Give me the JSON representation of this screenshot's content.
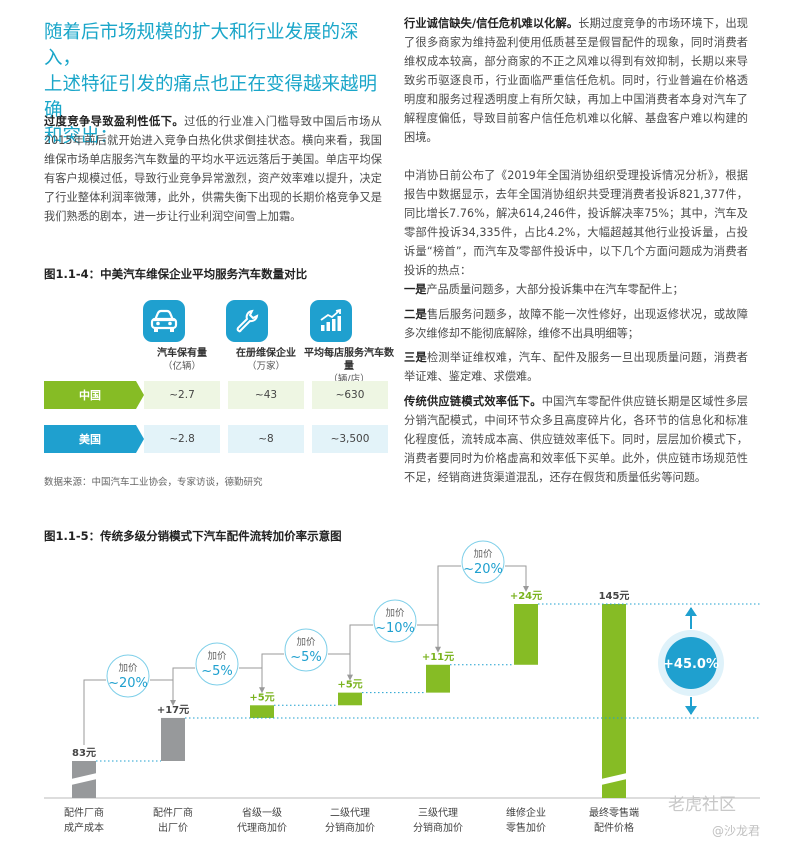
{
  "intro": {
    "lines": [
      "随着后市场规模的扩大和行业发展的深入，",
      "上述特征引发的痛点也正在变得越来越明确",
      "和突出："
    ]
  },
  "left_para": {
    "bold": "过度竞争导致盈利性低下。",
    "text": "过低的行业准入门槛导致中国后市场从2015年前后就开始进入竞争白热化供求倒挂状态。横向来看，我国维保市场单店服务汽车数量的平均水平远远落后于美国。单店平均保有客户规模过低，导致行业竞争异常激烈，资产效率难以提升，决定了行业整体利润率微薄，此外，供需失衡下出现的长期价格竞争又是我们熟悉的剧本，进一步让行业利润空间雪上加霜。"
  },
  "fig1": {
    "title": "图1.1-4：中美汽车维保企业平均服务汽车数量对比",
    "headers": [
      {
        "icon": "car-icon",
        "main": "汽车保有量",
        "sub": "（亿辆）"
      },
      {
        "icon": "wrench-icon",
        "main": "在册维保企业",
        "sub": "（万家）"
      },
      {
        "icon": "bar-growth-icon",
        "main": "平均每店服务汽车数量",
        "sub": "（辆/店）"
      }
    ],
    "rows": [
      {
        "label": "中国",
        "values": [
          "~2.7",
          "~43",
          "~630"
        ],
        "color": "#86bc25"
      },
      {
        "label": "美国",
        "values": [
          "~2.8",
          "~8",
          "~3,500"
        ],
        "color": "#1fa0cf"
      }
    ],
    "source": "数据来源：中国汽车工业协会，专家访谈，德勤研究"
  },
  "right_col": {
    "p1_bold": "行业诚信缺失/信任危机难以化解。",
    "p1_text": "长期过度竞争的市场环境下，出现了很多商家为维持盈利使用低质甚至是假冒配件的现象，同时消费者维权成本较高，部分商家的不正之风难以得到有效抑制，长期以来导致劣币驱逐良币，行业面临严重信任危机。同时，行业普遍在价格透明度和服务过程透明度上有所欠缺，再加上中国消费者本身对汽车了解程度偏低，导致目前客户信任危机难以化解、基盘客户难以构建的困境。",
    "p2_text": "中消协日前公布了《2019年全国消协组织受理投诉情况分析》，根据报告中数据显示，去年全国消协组织共受理消费者投诉821,377件，同比增长7.76%，解决614,246件，投诉解决率75%；其中，汽车及零部件投诉34,335件，占比4.2%，大幅超越其他行业投诉量，占投诉量“榜首”，而汽车及零部件投诉中，以下几个方面问题成为消费者投诉的热点：",
    "p3_bold": "一是",
    "p3_text": "产品质量问题多，大部分投诉集中在汽车零配件上；",
    "p4_bold": "二是",
    "p4_text": "售后服务问题多，故障不能一次性修好，出现返修状况，或故障多次维修却不能彻底解除，维修不出具明细等；",
    "p5_bold": "三是",
    "p5_text": "检测举证维权难，汽车、配件及服务一旦出现质量问题，消费者举证难、鉴定难、求偿难。",
    "p6_bold": "传统供应链模式效率低下。",
    "p6_text": "中国汽车零配件供应链长期是区域性多层分销汽配模式，中间环节众多且高度碎片化，各环节的信息化和标准化程度低，流转成本高、供应链效率低下。同时，层层加价模式下，消费者要同时为价格虚高和效率低下买单。此外，供应链市场规范性不足，经销商进货渠道混乱，还存在假货和质量低劣等问题。"
  },
  "fig2": {
    "title": "图1.1-5：传统多级分销模式下汽车配件流转加价率示意图",
    "chart_data": {
      "type": "bar",
      "subtype": "waterfall",
      "categories": [
        [
          "配件厂商",
          "成产成本"
        ],
        [
          "配件厂商",
          "出厂价"
        ],
        [
          "省级一级",
          "代理商加价"
        ],
        [
          "二级代理",
          "分销商加价"
        ],
        [
          "三级代理",
          "分销商加价"
        ],
        [
          "维修企业",
          "零售加价"
        ],
        [
          "最终零售端",
          "配件价格"
        ]
      ],
      "values": [
        83,
        17,
        5,
        5,
        11,
        24,
        145
      ],
      "labels": [
        "83元",
        "+17元",
        "+5元",
        "+5元",
        "+11元",
        "+24元",
        "145元"
      ],
      "bar_colors": [
        "#97999b",
        "#97999b",
        "#86bc25",
        "#86bc25",
        "#86bc25",
        "#86bc25",
        "#86bc25"
      ],
      "label_colors": [
        "#444444",
        "#444444",
        "#7ab31f",
        "#7ab31f",
        "#7ab31f",
        "#7ab31f",
        "#444444"
      ],
      "markups": [
        {
          "label": "加价",
          "value": "~20%"
        },
        {
          "label": "加价",
          "value": "~5%"
        },
        {
          "label": "加价",
          "value": "~5%"
        },
        {
          "label": "加价",
          "value": "~10%"
        },
        {
          "label": "加价",
          "value": "~20%"
        }
      ],
      "total_markup": "+45.0%",
      "accent": "#1fa0cf"
    }
  },
  "watermark": {
    "text1": "老虎社区",
    "text2": "@沙龙君"
  }
}
